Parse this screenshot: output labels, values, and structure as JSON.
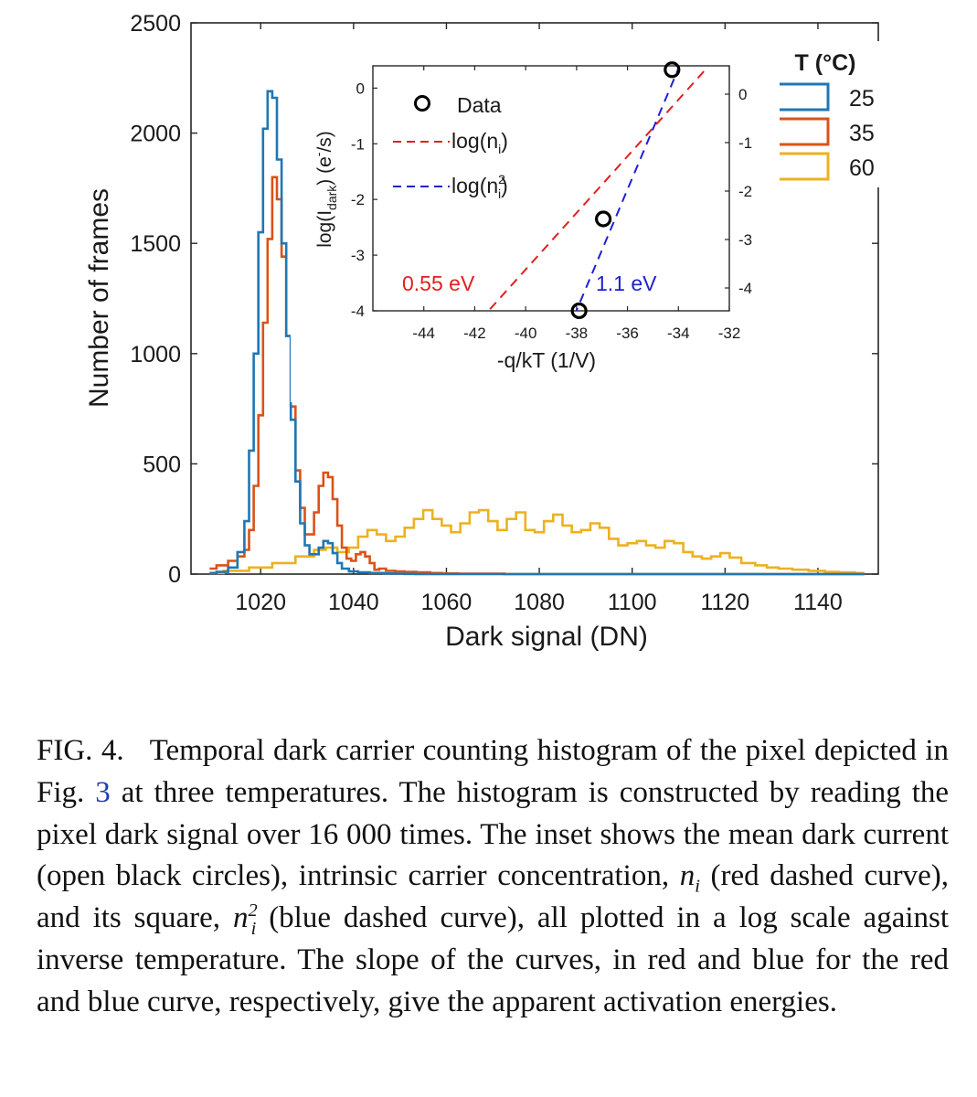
{
  "chart_data": [
    {
      "type": "line",
      "title": "",
      "xlabel": "Dark signal (DN)",
      "ylabel": "Number of frames",
      "xlim": [
        1005,
        1153
      ],
      "ylim": [
        0,
        2500
      ],
      "xticks": [
        1020,
        1040,
        1060,
        1080,
        1100,
        1120,
        1140
      ],
      "yticks": [
        0,
        500,
        1000,
        1500,
        2000,
        2500
      ],
      "legend": {
        "title": "T (°C)",
        "position": "top-right"
      },
      "series": [
        {
          "name": "25",
          "color": "#1f77b4",
          "style": "step",
          "x": [
            1009,
            1012,
            1014,
            1016,
            1017,
            1018,
            1019,
            1020,
            1021,
            1022,
            1023,
            1024,
            1025,
            1026,
            1027,
            1028,
            1029,
            1030,
            1031,
            1032,
            1033,
            1034,
            1035,
            1036,
            1037,
            1038,
            1040,
            1042,
            1045,
            1048,
            1050,
            1052,
            1055,
            1060,
            1080,
            1150
          ],
          "y": [
            5,
            10,
            30,
            100,
            240,
            560,
            1000,
            1550,
            2020,
            2190,
            2160,
            1880,
            1500,
            1080,
            700,
            420,
            230,
            130,
            90,
            90,
            120,
            150,
            140,
            95,
            50,
            25,
            12,
            8,
            5,
            3,
            2,
            1,
            0,
            0,
            0,
            0
          ]
        },
        {
          "name": "35",
          "color": "#d95319",
          "style": "step",
          "x": [
            1009,
            1012,
            1014,
            1016,
            1017,
            1018,
            1019,
            1020,
            1021,
            1022,
            1023,
            1024,
            1025,
            1026,
            1027,
            1028,
            1029,
            1030,
            1031,
            1032,
            1033,
            1034,
            1035,
            1036,
            1037,
            1038,
            1039,
            1040,
            1041,
            1042,
            1043,
            1044,
            1045,
            1046,
            1048,
            1050,
            1052,
            1055,
            1058,
            1060,
            1065,
            1080,
            1150
          ],
          "y": [
            25,
            40,
            60,
            80,
            110,
            200,
            400,
            720,
            1140,
            1520,
            1800,
            1700,
            1440,
            1080,
            760,
            470,
            300,
            180,
            180,
            280,
            400,
            460,
            440,
            340,
            220,
            120,
            70,
            60,
            90,
            100,
            80,
            50,
            20,
            25,
            15,
            12,
            10,
            8,
            5,
            3,
            2,
            0,
            0
          ]
        },
        {
          "name": "60",
          "color": "#edb120",
          "style": "step",
          "x": [
            1009,
            1015,
            1020,
            1025,
            1030,
            1033,
            1035,
            1038,
            1040,
            1042,
            1044,
            1046,
            1048,
            1050,
            1052,
            1054,
            1056,
            1058,
            1060,
            1062,
            1064,
            1066,
            1068,
            1070,
            1072,
            1074,
            1076,
            1078,
            1080,
            1082,
            1084,
            1086,
            1088,
            1090,
            1092,
            1094,
            1096,
            1098,
            1100,
            1102,
            1104,
            1106,
            1108,
            1110,
            1112,
            1114,
            1116,
            1118,
            1120,
            1122,
            1125,
            1128,
            1130,
            1133,
            1136,
            1140,
            1143,
            1146,
            1150
          ],
          "y": [
            5,
            15,
            30,
            50,
            80,
            110,
            120,
            100,
            120,
            170,
            200,
            180,
            150,
            170,
            210,
            250,
            290,
            250,
            220,
            190,
            230,
            280,
            290,
            240,
            200,
            250,
            280,
            200,
            190,
            240,
            270,
            220,
            190,
            200,
            230,
            210,
            160,
            130,
            140,
            150,
            130,
            120,
            150,
            140,
            100,
            80,
            70,
            80,
            95,
            75,
            50,
            40,
            30,
            25,
            20,
            15,
            10,
            8,
            5
          ]
        }
      ]
    },
    {
      "type": "line",
      "title": "",
      "xlabel": "-q/kT (1/V)",
      "ylabel": "log(I_dark) (e-/s)",
      "xlim": [
        -46,
        -32
      ],
      "ylim": [
        -4,
        0.4
      ],
      "xticks": [
        -44,
        -42,
        -40,
        -38,
        -36,
        -34,
        -32
      ],
      "xticklabels": [
        "-44",
        "-42",
        "-40",
        "-38",
        "-36",
        "-34",
        "-32"
      ],
      "yticks_left": [
        0,
        -1,
        -2,
        -3,
        -4
      ],
      "yticklabels_left": [
        "0",
        "-1",
        "-2",
        "-3",
        "-4"
      ],
      "yticks_right": [
        0,
        -1,
        -2,
        -3,
        -4
      ],
      "yticklabels_right": [
        "0",
        "-1",
        "-2",
        "-3",
        "-4"
      ],
      "legend": {
        "position": "top-left"
      },
      "series": [
        {
          "name": "Data",
          "color": "#000000",
          "style": "markers",
          "x": [
            -37.9,
            -36.95,
            -34.25
          ],
          "y": [
            -4.0,
            -2.35,
            0.33
          ]
        },
        {
          "name": "log(n_i)",
          "color": "#e02020",
          "style": "dashed",
          "x": [
            -41.4,
            -33.0
          ],
          "y": [
            -3.97,
            0.3
          ]
        },
        {
          "name": "log(n_i^2)",
          "color": "#2020d0",
          "style": "dashed",
          "x": [
            -38.1,
            -34.0
          ],
          "y": [
            -4.1,
            0.35
          ]
        }
      ],
      "annotations": [
        {
          "text": "0.55 eV",
          "color": "#e02020"
        },
        {
          "text": "1.1 eV",
          "color": "#2020d0"
        }
      ]
    }
  ],
  "main_plot": {
    "xlabel": "Dark signal (DN)",
    "ylabel": "Number of frames",
    "legend_title": "T (°C)",
    "legend_labels": [
      "25",
      "35",
      "60"
    ]
  },
  "inset": {
    "xlabel": "-q/kT (1/V)",
    "ylabel_main": "log(I",
    "ylabel_sub": "dark",
    "ylabel_rest": ") (e",
    "ylabel_sup": "-",
    "ylabel_end": "/s)",
    "legend": {
      "data": "Data",
      "ni_main": "log(n",
      "ni_sub": "i",
      "ni_end": ")",
      "ni2_main": "log(n",
      "ni2_sup": "2",
      "ni2_sub": "i",
      "ni2_end": ")"
    },
    "annotation_red": "0.55 eV",
    "annotation_blue": "1.1 eV"
  },
  "caption": {
    "label": "FIG. 4.",
    "p1": "Temporal dark carrier counting histogram of the pixel depicted in Fig.",
    "ref": "3",
    "p2": "at three temperatures. The histogram is constructed by reading the pixel dark signal over 16 000 times. The inset shows the mean dark current (open black circles), intrinsic carrier concentration,",
    "var1": "n",
    "var1_sub": "i",
    "p3": "(red dashed curve), and its square,",
    "var2": "n",
    "var2_sup": "2",
    "var2_sub": "i",
    "p4": "(blue dashed curve), all plotted in a log scale against inverse temperature. The slope of the curves, in red and blue for the red and blue curve, respectively, give the apparent activation energies."
  }
}
